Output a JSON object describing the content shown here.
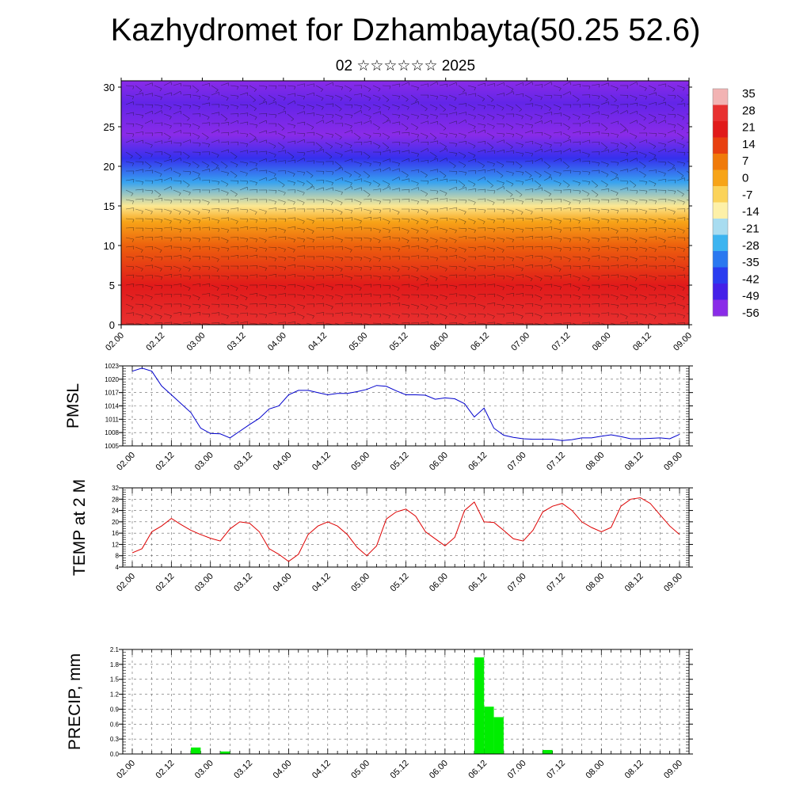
{
  "title": "Kazhydromet for Dzhambayta(50.25 52.6)",
  "subtitle": "02 ☆☆☆☆☆☆ 2025",
  "time_ticks": [
    "02.00",
    "02.12",
    "03.00",
    "03.12",
    "04.00",
    "04.12",
    "05.00",
    "05.12",
    "06.00",
    "06.12",
    "07.00",
    "07.12",
    "08.00",
    "08.12",
    "09.00"
  ],
  "chart_data": [
    {
      "type": "heatmap",
      "title": "",
      "xlabel": "",
      "ylabel": "",
      "yticks": [
        "0",
        "5",
        "10",
        "15",
        "20",
        "25",
        "30"
      ],
      "ylim": [
        0,
        30.8
      ],
      "colorbar_labels": [
        "35",
        "28",
        "21",
        "14",
        "7",
        "0",
        "-7",
        "-14",
        "-21",
        "-28",
        "-35",
        "-42",
        "-49",
        "-56"
      ],
      "colorbar_colors": [
        "#f2b3b3",
        "#e83030",
        "#e11a1a",
        "#e84010",
        "#f07a0a",
        "#f7a418",
        "#fbd35a",
        "#fdf0a8",
        "#a8dcf0",
        "#3cb4f0",
        "#2a78f0",
        "#2a3cf0",
        "#4420e8",
        "#8a2be8"
      ],
      "wind_barbs": "dense field of wind barbs over the whole time-height section",
      "bands": [
        {
          "height": 0,
          "value": 28
        },
        {
          "height": 5,
          "value": 21
        },
        {
          "height": 10,
          "value": 10
        },
        {
          "height": 13,
          "value": 0
        },
        {
          "height": 15,
          "value": -12
        },
        {
          "height": 18,
          "value": -30
        },
        {
          "height": 21,
          "value": -45
        },
        {
          "height": 24,
          "value": -56
        },
        {
          "height": 28,
          "value": -52
        },
        {
          "height": 30.8,
          "value": -58
        }
      ]
    },
    {
      "type": "line",
      "ylabel": "PMSL",
      "yticks": [
        "1005",
        "1008",
        "1011",
        "1014",
        "1017",
        "1020",
        "1023"
      ],
      "ylim": [
        1005,
        1023
      ],
      "line_color": "#0000cc",
      "x_hours": [
        0,
        3,
        6,
        9,
        12,
        15,
        18,
        21,
        24,
        27,
        30,
        33,
        36,
        39,
        42,
        45,
        48,
        51,
        54,
        57,
        60,
        63,
        66,
        69,
        72,
        75,
        78,
        81,
        84,
        87,
        90,
        93,
        96,
        99,
        102,
        105,
        108,
        111,
        114,
        117,
        120,
        123,
        126,
        129,
        132,
        135,
        138,
        141,
        144,
        147,
        150,
        153,
        156,
        159,
        162,
        165,
        168
      ],
      "values": [
        1021.8,
        1022.5,
        1021.8,
        1018.5,
        1016.5,
        1014.5,
        1012.5,
        1009.0,
        1007.8,
        1007.7,
        1006.8,
        1008.3,
        1009.8,
        1011.2,
        1013.3,
        1014.0,
        1016.5,
        1017.5,
        1017.5,
        1017.0,
        1016.5,
        1016.8,
        1016.8,
        1017.2,
        1017.7,
        1018.6,
        1018.4,
        1017.4,
        1016.5,
        1016.5,
        1016.4,
        1015.5,
        1015.8,
        1015.6,
        1014.5,
        1011.5,
        1013.5,
        1009.0,
        1007.4,
        1006.9,
        1006.6,
        1006.5,
        1006.5,
        1006.5,
        1006.2,
        1006.4,
        1006.8,
        1006.8,
        1007.2,
        1007.5,
        1007.1,
        1006.6,
        1006.6,
        1006.7,
        1006.8,
        1006.6,
        1007.6
      ]
    },
    {
      "type": "line",
      "ylabel": "TEMP at 2 M",
      "yticks": [
        "4",
        "8",
        "12",
        "16",
        "20",
        "24",
        "28",
        "32"
      ],
      "ylim": [
        4,
        32
      ],
      "line_color": "#dd0000",
      "x_hours": [
        0,
        3,
        6,
        9,
        12,
        15,
        18,
        21,
        24,
        27,
        30,
        33,
        36,
        39,
        42,
        45,
        48,
        51,
        54,
        57,
        60,
        63,
        66,
        69,
        72,
        75,
        78,
        81,
        84,
        87,
        90,
        93,
        96,
        99,
        102,
        105,
        108,
        111,
        114,
        117,
        120,
        123,
        126,
        129,
        132,
        135,
        138,
        141,
        144,
        147,
        150,
        153,
        156,
        159,
        162,
        165,
        168
      ],
      "values": [
        9.0,
        10.5,
        16.5,
        18.5,
        21.2,
        19.0,
        17.0,
        15.5,
        14.2,
        13.2,
        17.5,
        20.0,
        19.5,
        16.5,
        10.5,
        8.5,
        6.0,
        8.5,
        15.5,
        18.5,
        20.0,
        18.5,
        15.5,
        11.0,
        8.0,
        11.5,
        21.0,
        23.5,
        24.5,
        22.0,
        16.5,
        14.0,
        11.5,
        14.5,
        24.0,
        27.0,
        20.0,
        19.8,
        17.0,
        14.0,
        13.2,
        17.0,
        23.5,
        25.5,
        26.5,
        24.0,
        20.0,
        18.0,
        16.5,
        18.0,
        25.5,
        28.0,
        28.5,
        26.5,
        22.5,
        18.5,
        15.5
      ]
    },
    {
      "type": "bar",
      "ylabel": "PRECIP, mm",
      "yticks": [
        "0.0",
        "0.3",
        "0.6",
        "0.9",
        "1.2",
        "1.5",
        "1.8",
        "2.1"
      ],
      "ylim": [
        0,
        2.1
      ],
      "bar_color": "#00ee00",
      "bars": [
        {
          "start_hour": 18,
          "end_hour": 21,
          "value": 0.13
        },
        {
          "start_hour": 27,
          "end_hour": 30,
          "value": 0.05
        },
        {
          "start_hour": 105,
          "end_hour": 108,
          "value": 1.94
        },
        {
          "start_hour": 108,
          "end_hour": 111,
          "value": 0.95
        },
        {
          "start_hour": 111,
          "end_hour": 114,
          "value": 0.74
        },
        {
          "start_hour": 126,
          "end_hour": 129,
          "value": 0.08
        }
      ]
    }
  ]
}
